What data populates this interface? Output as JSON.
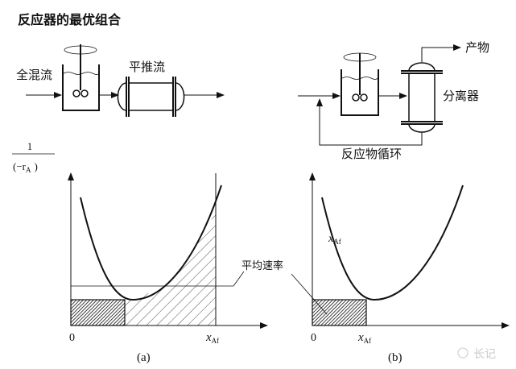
{
  "title": "反应器的最优组合",
  "diagram_a": {
    "cstr_label": "全混流",
    "pfr_label": "平推流"
  },
  "diagram_b": {
    "product_label": "产物",
    "separator_label": "分离器",
    "recycle_label": "反应物循环"
  },
  "y_axis": {
    "numerator": "1",
    "denominator": "(−r",
    "subscript": "A",
    "close": ")"
  },
  "plot_a": {
    "origin": "0",
    "x_label": "x",
    "x_sub": "Af",
    "caption": "(a)"
  },
  "plot_b": {
    "origin": "0",
    "x_label": "x",
    "x_sub": "Af",
    "caption": "(b)",
    "curve_label": "x",
    "curve_sub": "Af"
  },
  "avg_rate_label": "平均速率",
  "watermark": "长记"
}
